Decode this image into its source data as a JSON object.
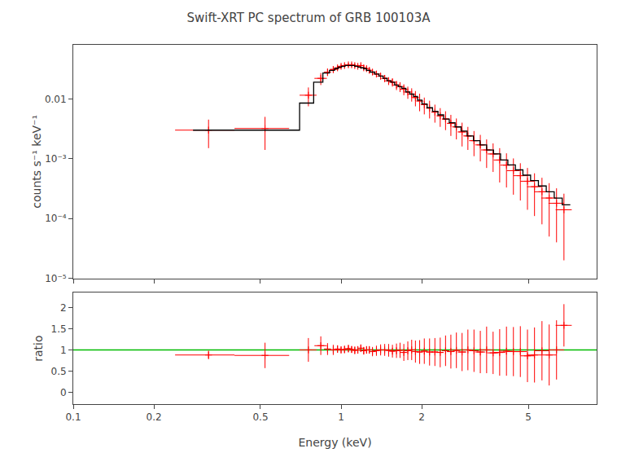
{
  "chart_data": [
    {
      "type": "scatter",
      "title": "Swift-XRT PC spectrum of GRB 100103A",
      "ylabel": "counts s⁻¹ keV⁻¹",
      "log": true,
      "grid": false,
      "tick_labels": "y",
      "xlim": [
        0.1,
        9.0
      ],
      "ylim": [
        1e-05,
        0.08
      ],
      "xticks": [
        0.1,
        0.2,
        0.5,
        1.0,
        2.0,
        5.0
      ],
      "yticks": [
        {
          "value": 1e-05,
          "label": "10⁻⁵"
        },
        {
          "value": 0.0001,
          "label": "10⁻⁴"
        },
        {
          "value": 0.001,
          "label": "10⁻³"
        },
        0.01
      ],
      "series": [
        {
          "type": "errorbar",
          "color": "#ff0000",
          "marker": "plus",
          "x": [
            0.32,
            0.52,
            0.755,
            0.84,
            0.89,
            0.935,
            0.97,
            1.0,
            1.03,
            1.065,
            1.095,
            1.125,
            1.155,
            1.185,
            1.215,
            1.245,
            1.275,
            1.31,
            1.355,
            1.405,
            1.455,
            1.505,
            1.555,
            1.61,
            1.66,
            1.715,
            1.775,
            1.835,
            1.895,
            1.965,
            2.045,
            2.14,
            2.24,
            2.345,
            2.455,
            2.57,
            2.695,
            2.83,
            2.975,
            3.135,
            3.31,
            3.495,
            3.695,
            3.91,
            4.145,
            4.4,
            4.67,
            4.965,
            5.275,
            5.625,
            5.985,
            6.375,
            6.795
          ],
          "xerr": [
            0.08,
            0.12,
            0.055,
            0.045,
            0.025,
            0.025,
            0.02,
            0.015,
            0.015,
            0.015,
            0.015,
            0.015,
            0.015,
            0.015,
            0.015,
            0.015,
            0.015,
            0.02,
            0.025,
            0.025,
            0.025,
            0.03,
            0.03,
            0.03,
            0.03,
            0.035,
            0.035,
            0.04,
            0.04,
            0.045,
            0.055,
            0.06,
            0.065,
            0.07,
            0.075,
            0.085,
            0.095,
            0.105,
            0.115,
            0.13,
            0.145,
            0.16,
            0.175,
            0.195,
            0.22,
            0.245,
            0.27,
            0.3,
            0.33,
            0.37,
            0.4,
            0.43,
            0.47
          ],
          "values": [
            0.003,
            0.0032,
            0.0115,
            0.022,
            0.028,
            0.031,
            0.033,
            0.035,
            0.036,
            0.037,
            0.037,
            0.036,
            0.035,
            0.036,
            0.033,
            0.032,
            0.03,
            0.028,
            0.026,
            0.024,
            0.022,
            0.02,
            0.019,
            0.017,
            0.016,
            0.0145,
            0.013,
            0.012,
            0.0105,
            0.0092,
            0.008,
            0.007,
            0.006,
            0.0052,
            0.0046,
            0.0039,
            0.0034,
            0.0028,
            0.0024,
            0.002,
            0.0017,
            0.0014,
            0.0012,
            0.00095,
            0.00078,
            0.00063,
            0.00052,
            0.00042,
            0.00034,
            0.00028,
            0.00022,
            0.00018,
            0.00014
          ],
          "yerr": [
            0.0015,
            0.0018,
            0.004,
            0.005,
            0.004,
            0.004,
            0.003,
            0.003,
            0.003,
            0.003,
            0.003,
            0.003,
            0.003,
            0.003,
            0.003,
            0.003,
            0.003,
            0.003,
            0.003,
            0.003,
            0.003,
            0.003,
            0.003,
            0.003,
            0.003,
            0.003,
            0.003,
            0.003,
            0.003,
            0.003,
            0.0025,
            0.0023,
            0.002,
            0.0018,
            0.0016,
            0.0015,
            0.0013,
            0.0012,
            0.001,
            0.0009,
            0.0008,
            0.0007,
            0.0006,
            0.00055,
            0.00045,
            0.00038,
            0.00032,
            0.00028,
            0.00023,
            0.0002,
            0.00017,
            0.00014,
            0.00012
          ]
        },
        {
          "type": "step",
          "color": "#000000",
          "x_edges": [
            0.28,
            0.4,
            0.7,
            0.79,
            0.855,
            0.905,
            0.945,
            0.975,
            1.005,
            1.035,
            1.065,
            1.095,
            1.125,
            1.155,
            1.185,
            1.215,
            1.245,
            1.285,
            1.335,
            1.385,
            1.435,
            1.485,
            1.535,
            1.585,
            1.635,
            1.685,
            1.745,
            1.805,
            1.865,
            1.93,
            2.005,
            2.095,
            2.195,
            2.3,
            2.415,
            2.535,
            2.665,
            2.805,
            2.955,
            3.12,
            3.3,
            3.495,
            3.71,
            3.94,
            4.195,
            4.475,
            4.775,
            5.1,
            5.455,
            5.835,
            6.25,
            6.695,
            7.175
          ],
          "values": [
            0.003,
            0.003,
            0.0085,
            0.019,
            0.027,
            0.03,
            0.032,
            0.034,
            0.035,
            0.036,
            0.036,
            0.036,
            0.035,
            0.034,
            0.033,
            0.032,
            0.03,
            0.028,
            0.026,
            0.024,
            0.022,
            0.02,
            0.019,
            0.017,
            0.016,
            0.015,
            0.013,
            0.012,
            0.011,
            0.0095,
            0.0082,
            0.0071,
            0.0062,
            0.0054,
            0.0046,
            0.004,
            0.0034,
            0.0029,
            0.0024,
            0.002,
            0.0017,
            0.0014,
            0.0012,
            0.00095,
            0.00079,
            0.00065,
            0.00053,
            0.00043,
            0.00035,
            0.00028,
            0.00022,
            0.00017
          ]
        }
      ]
    },
    {
      "type": "scatter",
      "xlabel": "Energy (keV)",
      "ylabel": "ratio",
      "log": "x",
      "grid": false,
      "xlim": [
        0.1,
        9.0
      ],
      "ylim": [
        -0.28,
        2.35
      ],
      "xticks": [
        0.1,
        0.2,
        0.5,
        1,
        2,
        5
      ],
      "yticks": [
        0,
        0.5,
        1,
        1.5,
        2
      ],
      "series": [
        {
          "type": "errorbar",
          "color": "#ff0000",
          "marker": "plus",
          "x": [
            0.32,
            0.52,
            0.755,
            0.84,
            0.89,
            0.935,
            0.97,
            1.0,
            1.03,
            1.065,
            1.095,
            1.125,
            1.155,
            1.185,
            1.215,
            1.245,
            1.275,
            1.31,
            1.355,
            1.405,
            1.455,
            1.505,
            1.555,
            1.61,
            1.66,
            1.715,
            1.775,
            1.835,
            1.895,
            1.965,
            2.045,
            2.14,
            2.24,
            2.345,
            2.455,
            2.57,
            2.695,
            2.83,
            2.975,
            3.135,
            3.31,
            3.495,
            3.695,
            3.91,
            4.145,
            4.4,
            4.67,
            4.965,
            5.275,
            5.625,
            5.985,
            6.375,
            6.795
          ],
          "xerr": [
            0.08,
            0.12,
            0.055,
            0.045,
            0.025,
            0.025,
            0.02,
            0.015,
            0.015,
            0.015,
            0.015,
            0.015,
            0.015,
            0.015,
            0.015,
            0.015,
            0.015,
            0.02,
            0.025,
            0.025,
            0.025,
            0.03,
            0.03,
            0.03,
            0.03,
            0.035,
            0.035,
            0.04,
            0.04,
            0.045,
            0.055,
            0.06,
            0.065,
            0.07,
            0.075,
            0.085,
            0.095,
            0.105,
            0.115,
            0.13,
            0.145,
            0.16,
            0.175,
            0.195,
            0.22,
            0.245,
            0.27,
            0.3,
            0.33,
            0.37,
            0.4,
            0.43,
            0.47
          ],
          "values": [
            0.88,
            0.87,
            1.0,
            1.1,
            1.02,
            1.0,
            1.02,
            1.0,
            1.01,
            1.03,
            1.01,
            0.99,
            1.0,
            1.04,
            0.98,
            1.0,
            1.0,
            0.96,
            0.98,
            1.0,
            1.0,
            0.99,
            0.97,
            0.98,
            0.99,
            0.94,
            0.98,
            1.0,
            0.96,
            0.95,
            0.97,
            0.95,
            0.95,
            0.94,
            0.98,
            0.96,
            0.99,
            0.95,
            1.0,
            0.98,
            0.95,
            1.0,
            0.93,
            0.94,
            0.97,
            0.96,
            0.96,
            0.86,
            0.88,
            0.98,
            0.88,
            1.0,
            1.58
          ],
          "yerr": [
            0.1,
            0.3,
            0.28,
            0.22,
            0.14,
            0.12,
            0.09,
            0.08,
            0.09,
            0.09,
            0.08,
            0.09,
            0.09,
            0.09,
            0.09,
            0.09,
            0.09,
            0.11,
            0.12,
            0.13,
            0.14,
            0.15,
            0.15,
            0.17,
            0.18,
            0.2,
            0.22,
            0.24,
            0.26,
            0.28,
            0.3,
            0.32,
            0.33,
            0.35,
            0.36,
            0.4,
            0.42,
            0.45,
            0.48,
            0.5,
            0.5,
            0.55,
            0.5,
            0.55,
            0.58,
            0.58,
            0.6,
            0.62,
            0.65,
            0.7,
            0.72,
            0.7,
            0.5
          ]
        },
        {
          "type": "hline",
          "color": "#00bb00",
          "y": 1.0
        }
      ]
    }
  ]
}
